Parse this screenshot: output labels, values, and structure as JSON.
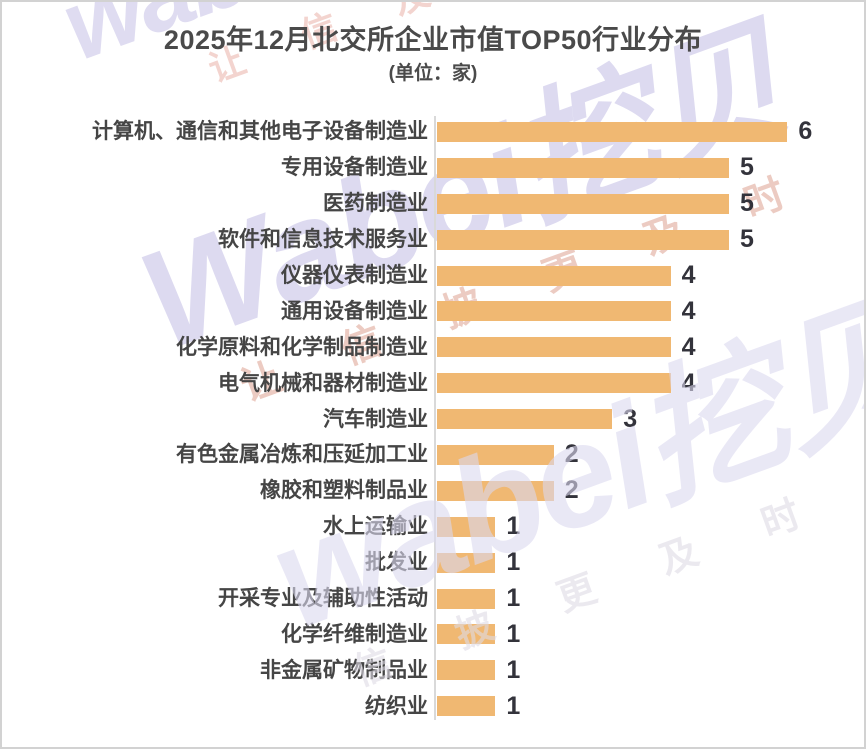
{
  "header": {
    "title": "2025年12月北交所企业市值TOP50行业分布",
    "subtitle": "(单位：家)"
  },
  "chart_data": {
    "type": "bar",
    "orientation": "horizontal",
    "title": "2025年12月北交所企业市值TOP50行业分布",
    "unit_note": "(单位：家)",
    "categories": [
      "计算机、通信和其他电子设备制造业",
      "专用设备制造业",
      "医药制造业",
      "软件和信息技术服务业",
      "仪器仪表制造业",
      "通用设备制造业",
      "化学原料和化学制品制造业",
      "电气机械和器材制造业",
      "汽车制造业",
      "有色金属冶炼和压延加工业",
      "橡胶和塑料制品业",
      "水上运输业",
      "批发业",
      "开采专业及辅助性活动",
      "化学纤维制造业",
      "非金属矿物制品业",
      "纺织业"
    ],
    "values": [
      6,
      5,
      5,
      5,
      4,
      4,
      4,
      4,
      3,
      2,
      2,
      1,
      1,
      1,
      1,
      1,
      1
    ],
    "value_labels_shown": true,
    "xlim": [
      0,
      6
    ],
    "grid": false,
    "colors": {
      "bar": "#F0B872",
      "value_label": "#33333B",
      "category_label": "#454545",
      "title": "#4A4A4A",
      "axis_line": "#D9D9D9"
    }
  },
  "watermarks": [
    {
      "big_latin": "wabei",
      "big_cn": "挖贝",
      "slogan": "让 信  及 时",
      "big_latin_color": "#DCD9F0",
      "big_cn_color": "#F5D8D2",
      "slogan_color": "#F2D0CA"
    },
    {
      "big_latin": "Wabei",
      "big_cn": "挖贝",
      "slogan": "让 信 披 更 及 时",
      "big_latin_color": "#DCD9F0",
      "big_cn_color": "#DCD9F0",
      "slogan_color": "#ECC9BF"
    },
    {
      "big_latin": "wabei",
      "big_cn": "挖贝",
      "slogan": "信 披 更 及 时",
      "big_latin_color": "#DCD9F0",
      "big_cn_color": "#DCD9F0",
      "slogan_color": "#DFDCE6"
    }
  ]
}
